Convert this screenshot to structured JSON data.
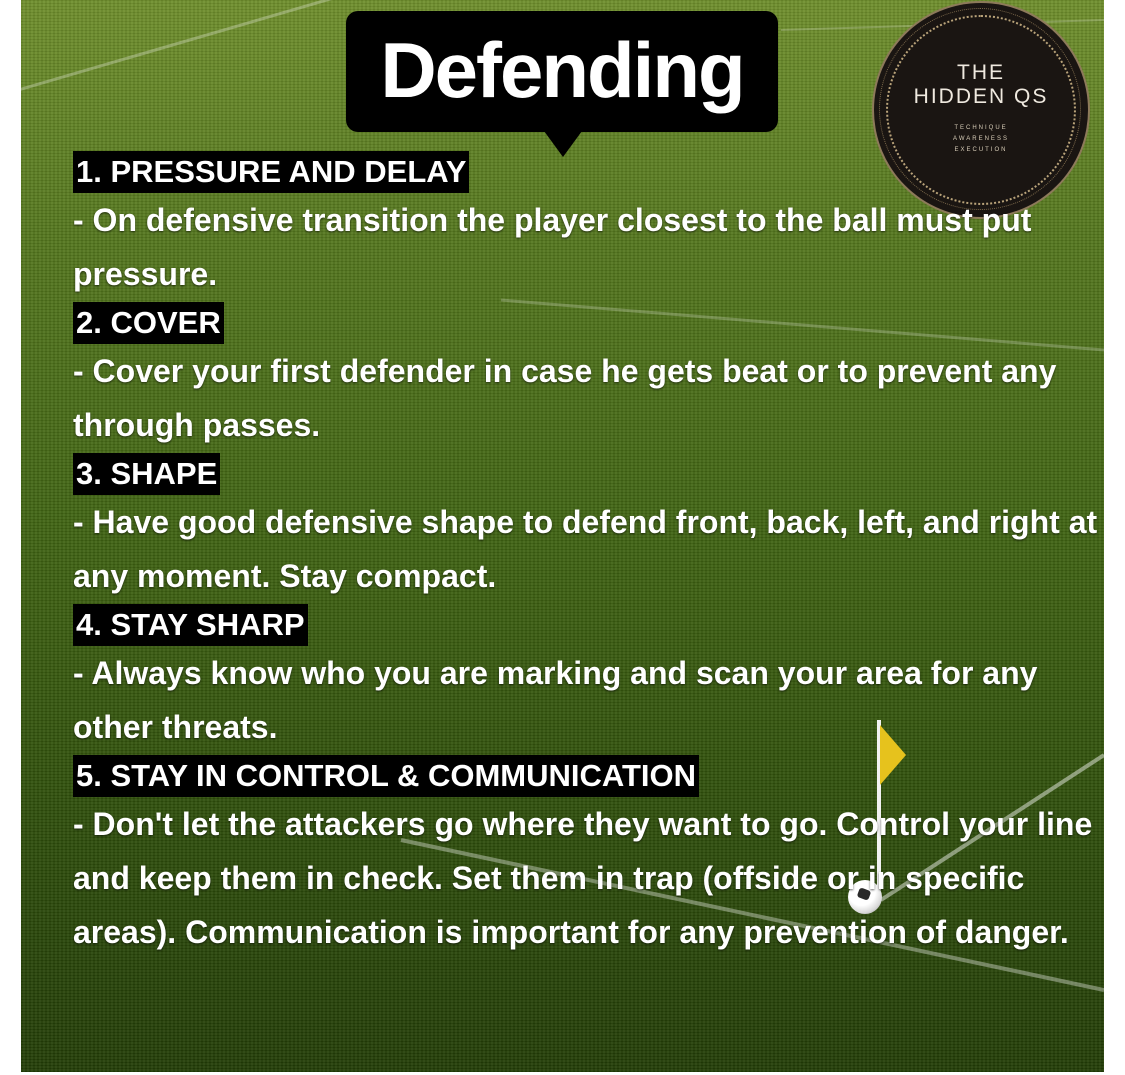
{
  "poster": {
    "title": "Defending",
    "logo": {
      "brand": "THE\nHIDDEN QS",
      "tagline": "TECHNIQUE\nAWARENESS\nEXECUTION"
    },
    "sections": [
      {
        "heading": "1. PRESSURE AND DELAY",
        "description": "- On defensive transition the player closest to the ball must put pressure."
      },
      {
        "heading": "2. COVER",
        "description": "- Cover your first defender in case he gets beat or to prevent any through passes."
      },
      {
        "heading": "3. SHAPE",
        "description": "- Have good defensive shape to defend front, back, left, and right at any moment. Stay compact."
      },
      {
        "heading": "4. STAY SHARP",
        "description": "- Always know who you are marking and scan your area for any other threats."
      },
      {
        "heading": "5. STAY IN CONTROL & COMMUNICATION",
        "description": "- Don't let the attackers go where they want to go. Control your line and keep them in check. Set them in trap (offside or in specific areas). Communication is important for any prevention of danger."
      }
    ],
    "colors": {
      "heading_background": "#000000",
      "text": "#ffffff",
      "logo_background": "#1a1512",
      "logo_accent": "#b9a37a",
      "pitch": "#3f6312",
      "corner_flag": "#e6c21d"
    },
    "icons": [
      "speech-bubble",
      "corner-flag",
      "soccer-ball",
      "brand-logo-seal"
    ]
  }
}
